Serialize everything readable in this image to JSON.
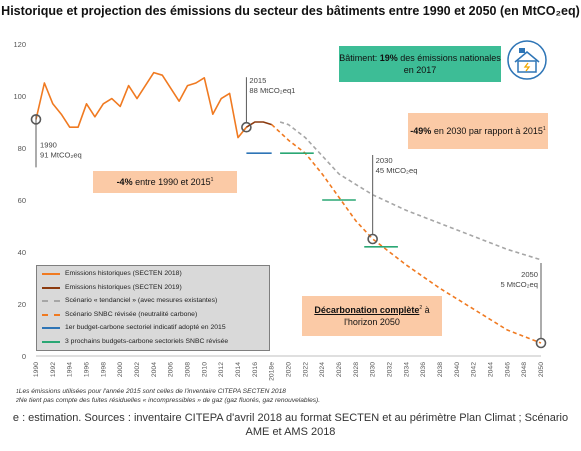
{
  "title": "Historique et projection des émissions du secteur des bâtiments entre 1990 et 2050 (en MtCO₂eq)",
  "chart_data": {
    "type": "line",
    "ylim": [
      0,
      120
    ],
    "yticks": [
      0,
      20,
      40,
      60,
      80,
      100,
      120
    ],
    "x_tick_labels": [
      "1990",
      "1992",
      "1994",
      "1996",
      "1998",
      "2000",
      "2002",
      "2004",
      "2006",
      "2008",
      "2010",
      "2012",
      "2014",
      "2016",
      "2018e",
      "2020",
      "2022",
      "2024",
      "2026",
      "2028",
      "2030",
      "2032",
      "2034",
      "2036",
      "2038",
      "2040",
      "2042",
      "2044",
      "2046",
      "2048",
      "2050"
    ],
    "series": [
      {
        "name": "Emissions historiques  (SECTEN 2018)",
        "color": "#f07a21",
        "style": "solid",
        "x": [
          1990,
          1991,
          1992,
          1993,
          1994,
          1995,
          1996,
          1997,
          1998,
          1999,
          2000,
          2001,
          2002,
          2003,
          2004,
          2005,
          2006,
          2007,
          2008,
          2009,
          2010,
          2011,
          2012,
          2013,
          2014,
          2015
        ],
        "y": [
          91,
          105,
          97,
          93,
          88,
          88,
          97,
          92,
          97,
          99,
          96,
          104,
          99,
          104,
          109,
          108,
          103,
          98,
          104,
          105,
          107,
          93,
          99,
          101,
          84,
          88
        ]
      },
      {
        "name": "Emissions historiques  (SECTEN 2019)",
        "color": "#8b3a0f",
        "style": "solid",
        "x": [
          2015,
          2016,
          2017,
          2018
        ],
        "y": [
          88,
          90,
          90,
          89
        ]
      },
      {
        "name": "Scénario « tendanciel » (avec mesures existantes)",
        "color": "#a6a6a6",
        "style": "dashed",
        "x": [
          2019,
          2020,
          2022,
          2024,
          2026,
          2028,
          2030,
          2034,
          2038,
          2042,
          2046,
          2050
        ],
        "y": [
          90,
          89,
          84,
          77,
          70,
          66,
          62,
          56,
          51,
          46,
          41,
          37
        ]
      },
      {
        "name": "Scénario SNBC révisée (neutralité carbone)",
        "color": "#f07a21",
        "style": "dashed",
        "x": [
          2018,
          2020,
          2022,
          2024,
          2026,
          2028,
          2030,
          2034,
          2038,
          2042,
          2046,
          2050
        ],
        "y": [
          89,
          83,
          78,
          70,
          61,
          52,
          45,
          35,
          26,
          18,
          10,
          5
        ]
      },
      {
        "name": "1er budget-carbone sectoriel indicatif adopté en 2015",
        "color": "#2e75b6",
        "style": "segment",
        "segments": [
          {
            "x": [
              2015,
              2018
            ],
            "y": 78
          }
        ]
      },
      {
        "name": "3 prochains budgets-carbone sectoriels SNBC révisée",
        "color": "#2aa774",
        "style": "segment",
        "segments": [
          {
            "x": [
              2019,
              2023
            ],
            "y": 78
          },
          {
            "x": [
              2024,
              2028
            ],
            "y": 60
          },
          {
            "x": [
              2029,
              2033
            ],
            "y": 42
          }
        ]
      }
    ],
    "markers": [
      {
        "x": 1990,
        "y": 91,
        "year_label": "1990",
        "value_label": "91 MtCO₂eq"
      },
      {
        "x": 2015,
        "y": 88,
        "year_label": "2015",
        "value_label": "88 MtCO₂eq",
        "sup": "1"
      },
      {
        "x": 2030,
        "y": 45,
        "year_label": "2030",
        "value_label": "45 MtCO₂eq"
      },
      {
        "x": 2050,
        "y": 5,
        "year_label": "2050",
        "value_label": "5 MtCO₂eq"
      }
    ]
  },
  "boxes": {
    "green": {
      "pre": "Bâtiment: ",
      "bold": "19%",
      "post": " des émissions nationales en 2017"
    },
    "right1": {
      "bold": "-49%",
      "post": " en 2030 par rapport à 2015",
      "sup": "1"
    },
    "left": {
      "bold": "-4%",
      "post": " entre 1990 et 2015",
      "sup": "1"
    },
    "right2": {
      "bold": "Décarbonation complète",
      "sup": "2",
      "post": " à l'horizon 2050"
    }
  },
  "notes": [
    {
      "sup": "1",
      "text": "Les émissions utilisées pour l'année 2015 sont celles de l'inventaire CITEPA SECTEN 2018"
    },
    {
      "sup": "2",
      "text": "Ne tient pas compte des fuites résiduelles « incompressibles » de gaz (gaz fluorés, gaz renouvelables)."
    }
  ],
  "footer": "e : estimation. Sources : inventaire CITEPA d'avril 2018 au format SECTEN et au périmètre Plan Climat ; Scénario AME et AMS 2018",
  "icon": "house-solar-icon",
  "colors": {
    "green_box": "#3dbd96",
    "peach_box": "#fbcaa6",
    "legend_bg": "#d9d9d9"
  }
}
